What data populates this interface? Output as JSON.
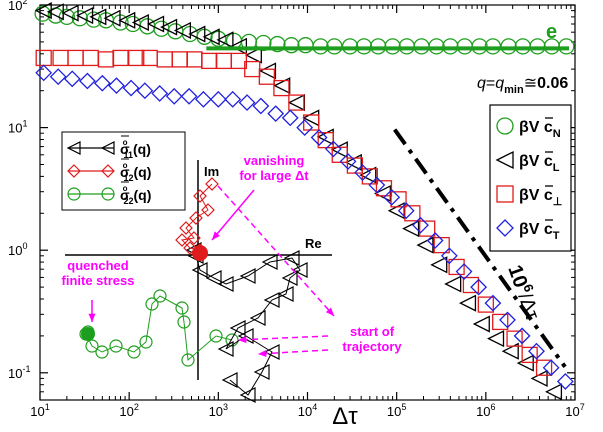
{
  "chart_data": {
    "type": "scatter",
    "xscale": "log",
    "yscale": "log",
    "xlim": [
      10,
      10000000
    ],
    "ylim": [
      0.06,
      100
    ],
    "xlabel": "Δτ",
    "ylabel": "",
    "x_ticks": [
      {
        "value": 10,
        "base": "10",
        "exp": "1"
      },
      {
        "value": 100,
        "base": "10",
        "exp": "2"
      },
      {
        "value": 1000,
        "base": "10",
        "exp": "3"
      },
      {
        "value": 10000,
        "base": "10",
        "exp": "4"
      },
      {
        "value": 100000,
        "base": "10",
        "exp": "5"
      },
      {
        "value": 1000000,
        "base": "10",
        "exp": "6"
      },
      {
        "value": 10000000,
        "base": "10",
        "exp": "7"
      }
    ],
    "y_ticks": [
      {
        "value": 0.1,
        "base": "10",
        "exp": "-1"
      },
      {
        "value": 1,
        "base": "10",
        "exp": "0"
      },
      {
        "value": 10,
        "base": "10",
        "exp": "1"
      },
      {
        "value": 100,
        "base": "10",
        "exp": "2"
      }
    ],
    "colors": {
      "green": "#1e9e1e",
      "black": "#000000",
      "red": "#e01b1b",
      "blue": "#2020e0",
      "magenta": "#ff00ff"
    },
    "series": [
      {
        "name": "βV c̄_N",
        "marker": "circle",
        "color": "#1e9e1e",
        "points": [
          [
            10.7,
            85
          ],
          [
            15,
            82
          ],
          [
            20,
            80
          ],
          [
            28,
            78
          ],
          [
            40,
            76
          ],
          [
            55,
            75
          ],
          [
            80,
            72
          ],
          [
            110,
            70
          ],
          [
            160,
            67
          ],
          [
            230,
            64
          ],
          [
            330,
            61
          ],
          [
            480,
            58
          ],
          [
            700,
            55
          ],
          [
            1000,
            53
          ],
          [
            1500,
            51
          ],
          [
            2200,
            50
          ],
          [
            3200,
            49
          ],
          [
            4600,
            48
          ],
          [
            6600,
            47
          ],
          [
            9500,
            47
          ],
          [
            14000,
            46
          ],
          [
            20000,
            46
          ],
          [
            30000,
            46
          ],
          [
            43000,
            46
          ],
          [
            62000,
            46
          ],
          [
            90000,
            46
          ],
          [
            130000,
            46
          ],
          [
            190000,
            46
          ],
          [
            280000,
            46
          ],
          [
            400000,
            46
          ],
          [
            580000,
            46
          ],
          [
            850000,
            46
          ],
          [
            1200000,
            46
          ],
          [
            1800000,
            46
          ],
          [
            2600000,
            46
          ],
          [
            3800000,
            46
          ],
          [
            5500000,
            46
          ],
          [
            8000000,
            46
          ]
        ]
      },
      {
        "name": "βV c̄_L",
        "marker": "triangle-left",
        "color": "#000000",
        "points": [
          [
            11,
            90
          ],
          [
            15,
            88
          ],
          [
            22,
            86
          ],
          [
            32,
            82
          ],
          [
            45,
            80
          ],
          [
            65,
            78
          ],
          [
            95,
            75
          ],
          [
            135,
            72
          ],
          [
            200,
            70
          ],
          [
            280,
            66
          ],
          [
            400,
            62
          ],
          [
            580,
            58
          ],
          [
            840,
            55
          ],
          [
            1200,
            52
          ],
          [
            1700,
            46
          ],
          [
            2500,
            39
          ],
          [
            3600,
            29
          ],
          [
            5200,
            22
          ],
          [
            7600,
            16
          ],
          [
            11000,
            12
          ],
          [
            16000,
            8.4
          ],
          [
            23000,
            6.6
          ],
          [
            33000,
            5.2
          ],
          [
            48000,
            4.1
          ],
          [
            70000,
            2.9
          ],
          [
            100000,
            2.1
          ],
          [
            145000,
            1.5
          ],
          [
            210000,
            1.1
          ],
          [
            300000,
            0.76
          ],
          [
            430000,
            0.53
          ],
          [
            630000,
            0.37
          ],
          [
            900000,
            0.25
          ],
          [
            1300000,
            0.19
          ],
          [
            1900000,
            0.15
          ],
          [
            2800000,
            0.12
          ],
          [
            4000000,
            0.09
          ],
          [
            5800000,
            0.07
          ]
        ]
      },
      {
        "name": "βV c̄_⊥",
        "marker": "square",
        "color": "#e01b1b",
        "points": [
          [
            11,
            37
          ],
          [
            17,
            37
          ],
          [
            25,
            37
          ],
          [
            37,
            37
          ],
          [
            55,
            36
          ],
          [
            80,
            37
          ],
          [
            120,
            37
          ],
          [
            170,
            37
          ],
          [
            250,
            36
          ],
          [
            370,
            36
          ],
          [
            540,
            36
          ],
          [
            790,
            35
          ],
          [
            1150,
            35
          ],
          [
            1700,
            35
          ],
          [
            2400,
            30
          ],
          [
            3500,
            26
          ],
          [
            5100,
            21
          ],
          [
            7500,
            16
          ],
          [
            11000,
            11
          ],
          [
            16000,
            7.9
          ],
          [
            23000,
            6.0
          ],
          [
            34000,
            4.9
          ],
          [
            50000,
            4.0
          ],
          [
            72000,
            3.2
          ],
          [
            105000,
            2.6
          ],
          [
            150000,
            2.0
          ],
          [
            220000,
            1.5
          ],
          [
            320000,
            1.1
          ],
          [
            470000,
            0.73
          ],
          [
            680000,
            0.52
          ],
          [
            1000000,
            0.36
          ],
          [
            1450000,
            0.26
          ],
          [
            2100000,
            0.19
          ],
          [
            3100000,
            0.14
          ],
          [
            4500000,
            0.11
          ]
        ]
      },
      {
        "name": "βV c̄_T",
        "marker": "diamond",
        "color": "#2020e0",
        "points": [
          [
            11,
            28
          ],
          [
            16,
            26
          ],
          [
            23,
            25
          ],
          [
            34,
            24
          ],
          [
            50,
            23
          ],
          [
            72,
            22
          ],
          [
            105,
            21
          ],
          [
            150,
            20
          ],
          [
            220,
            19
          ],
          [
            320,
            18
          ],
          [
            470,
            18
          ],
          [
            680,
            17
          ],
          [
            1000,
            17
          ],
          [
            1450,
            17
          ],
          [
            2100,
            16
          ],
          [
            3000,
            15
          ],
          [
            4400,
            13
          ],
          [
            6400,
            12
          ],
          [
            9300,
            10
          ],
          [
            13500,
            8.3
          ],
          [
            19500,
            6.7
          ],
          [
            28500,
            5.3
          ],
          [
            41500,
            4.3
          ],
          [
            60000,
            3.4
          ],
          [
            88000,
            2.7
          ],
          [
            128000,
            2.1
          ],
          [
            185000,
            1.6
          ],
          [
            270000,
            1.2
          ],
          [
            390000,
            0.9
          ],
          [
            570000,
            0.67
          ],
          [
            830000,
            0.5
          ],
          [
            1200000,
            0.37
          ],
          [
            1750000,
            0.27
          ],
          [
            2550000,
            0.2
          ],
          [
            3700000,
            0.15
          ],
          [
            5400000,
            0.11
          ],
          [
            7800000,
            0.085
          ]
        ]
      }
    ],
    "lines": [
      {
        "name": "e",
        "color": "#1e9e1e",
        "x": [
          1000,
          10000000
        ],
        "y": [
          46,
          46
        ]
      },
      {
        "name": "10^6/Δτ",
        "color": "#000000",
        "style": "dash-dot",
        "x": [
          100000,
          10000000
        ],
        "y": [
          10,
          0.1
        ]
      }
    ],
    "annotations": {
      "e_label": "e",
      "q_label": {
        "q": "q",
        "eq": "=",
        "qmin": "q",
        "min_sub": "min",
        "approx": "≅",
        "value": "0.06"
      },
      "slope_label": {
        "base": "10",
        "exp": "6",
        "rest": "/Δτ"
      },
      "vanishing": [
        "vanishing",
        "for large Δt"
      ],
      "quenched": [
        "quenched",
        "finite stress"
      ],
      "start": [
        "start of",
        "trajectory"
      ]
    },
    "legend_right": {
      "placement": "right",
      "entries": [
        {
          "prefix": "βV ",
          "sym": "c",
          "sub": "N"
        },
        {
          "prefix": "βV ",
          "sym": "c",
          "sub": "L"
        },
        {
          "prefix": "βV ",
          "sym": "c",
          "sub": "⊥"
        },
        {
          "prefix": "βV ",
          "sym": "c",
          "sub": "T"
        }
      ]
    },
    "inset": {
      "axis_labels": {
        "im": "Im",
        "re": "Re"
      },
      "legend": [
        {
          "sym": "σ",
          "sup": "o",
          "sub": "11",
          "arg": "(q)",
          "color": "#000000",
          "marker": "triangle-left"
        },
        {
          "sym": "σ",
          "sup": "o",
          "sub": "12",
          "arg": "(q)",
          "color": "#e01b1b",
          "marker": "diamond"
        },
        {
          "sym": "σ",
          "sup": "o",
          "sub": "22",
          "arg": "(q)",
          "color": "#1e9e1e",
          "marker": "circle"
        }
      ],
      "trajectory_11": [
        [
          230,
          380
        ],
        [
          248,
          395
        ],
        [
          262,
          372
        ],
        [
          272,
          352
        ],
        [
          246,
          336
        ],
        [
          226,
          349
        ],
        [
          238,
          328
        ],
        [
          258,
          318
        ],
        [
          272,
          300
        ],
        [
          286,
          294
        ],
        [
          290,
          278
        ],
        [
          300,
          270
        ],
        [
          292,
          258
        ],
        [
          270,
          262
        ],
        [
          248,
          276
        ],
        [
          226,
          284
        ],
        [
          214,
          278
        ],
        [
          200,
          270
        ],
        [
          196,
          256
        ],
        [
          194,
          250
        ]
      ],
      "trajectory_12": [
        [
          212,
          184
        ],
        [
          200,
          196
        ],
        [
          208,
          210
        ],
        [
          196,
          218
        ],
        [
          186,
          228
        ],
        [
          194,
          238
        ],
        [
          182,
          240
        ],
        [
          190,
          248
        ],
        [
          200,
          250
        ]
      ],
      "trajectory_22": [
        [
          232,
          340
        ],
        [
          216,
          336
        ],
        [
          188,
          360
        ],
        [
          184,
          322
        ],
        [
          182,
          308
        ],
        [
          160,
          296
        ],
        [
          152,
          304
        ],
        [
          146,
          342
        ],
        [
          134,
          352
        ],
        [
          116,
          346
        ],
        [
          102,
          352
        ],
        [
          92,
          346
        ],
        [
          86,
          334
        ],
        [
          88,
          332
        ]
      ]
    }
  }
}
